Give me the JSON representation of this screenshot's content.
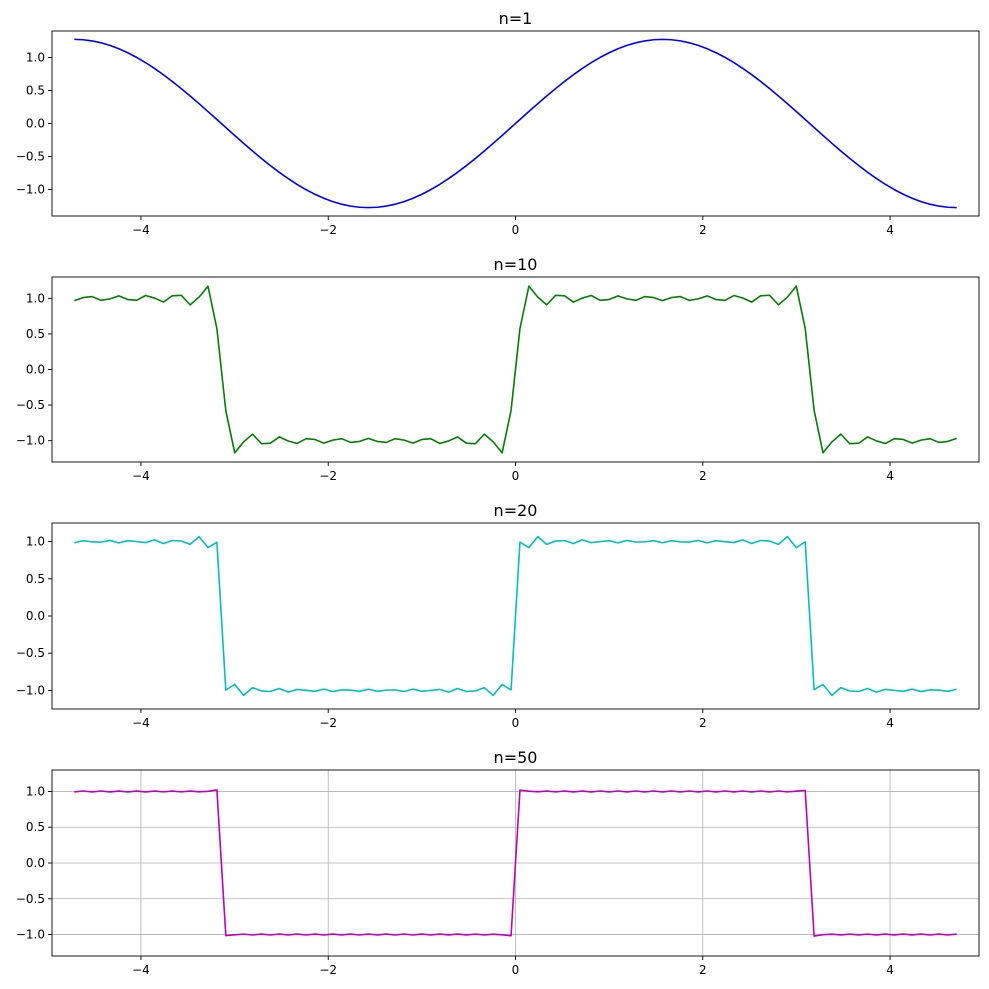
{
  "chart_data": [
    {
      "type": "line",
      "title": "n=1",
      "n": 1,
      "xlim": [
        -4.95,
        4.95
      ],
      "ylim": [
        -1.4,
        1.4
      ],
      "xticks": [
        -4,
        -2,
        0,
        2,
        4
      ],
      "xtick_labels": [
        "−4",
        "−2",
        "0",
        "2",
        "4"
      ],
      "yticks": [
        1.0,
        0.5,
        0.0,
        -0.5,
        -1.0
      ],
      "ytick_labels": [
        "1.0",
        "0.5",
        "0.0",
        "−0.5",
        "−1.0"
      ],
      "grid": false,
      "color": "#0000ff",
      "series": [
        {
          "x_range": [
            -4.712,
            4.712
          ],
          "points": 100
        }
      ]
    },
    {
      "type": "line",
      "title": "n=10",
      "n": 10,
      "xlim": [
        -4.95,
        4.95
      ],
      "ylim": [
        -1.3,
        1.3
      ],
      "xticks": [
        -4,
        -2,
        0,
        2,
        4
      ],
      "xtick_labels": [
        "−4",
        "−2",
        "0",
        "2",
        "4"
      ],
      "yticks": [
        1.0,
        0.5,
        0.0,
        -0.5,
        -1.0
      ],
      "ytick_labels": [
        "1.0",
        "0.5",
        "0.0",
        "−0.5",
        "−1.0"
      ],
      "grid": false,
      "color": "#008000",
      "series": [
        {
          "x_range": [
            -4.712,
            4.712
          ],
          "points": 100
        }
      ]
    },
    {
      "type": "line",
      "title": "n=20",
      "n": 20,
      "xlim": [
        -4.95,
        4.95
      ],
      "ylim": [
        -1.25,
        1.25
      ],
      "xticks": [
        -4,
        -2,
        0,
        2,
        4
      ],
      "xtick_labels": [
        "−4",
        "−2",
        "0",
        "2",
        "4"
      ],
      "yticks": [
        1.0,
        0.5,
        0.0,
        -0.5,
        -1.0
      ],
      "ytick_labels": [
        "1.0",
        "0.5",
        "0.0",
        "−0.5",
        "−1.0"
      ],
      "grid": false,
      "color": "#00bfbf",
      "series": [
        {
          "x_range": [
            -4.712,
            4.712
          ],
          "points": 100
        }
      ]
    },
    {
      "type": "line",
      "title": "n=50",
      "n": 50,
      "xlim": [
        -4.95,
        4.95
      ],
      "ylim": [
        -1.3,
        1.3
      ],
      "xticks": [
        -4,
        -2,
        0,
        2,
        4
      ],
      "xtick_labels": [
        "−4",
        "−2",
        "0",
        "2",
        "4"
      ],
      "yticks": [
        1.0,
        0.5,
        0.0,
        -0.5,
        -1.0
      ],
      "ytick_labels": [
        "1.0",
        "0.5",
        "0.0",
        "−0.5",
        "−1.0"
      ],
      "grid": true,
      "color": "#bf00bf",
      "series": [
        {
          "x_range": [
            -4.712,
            4.712
          ],
          "points": 100
        }
      ]
    }
  ]
}
